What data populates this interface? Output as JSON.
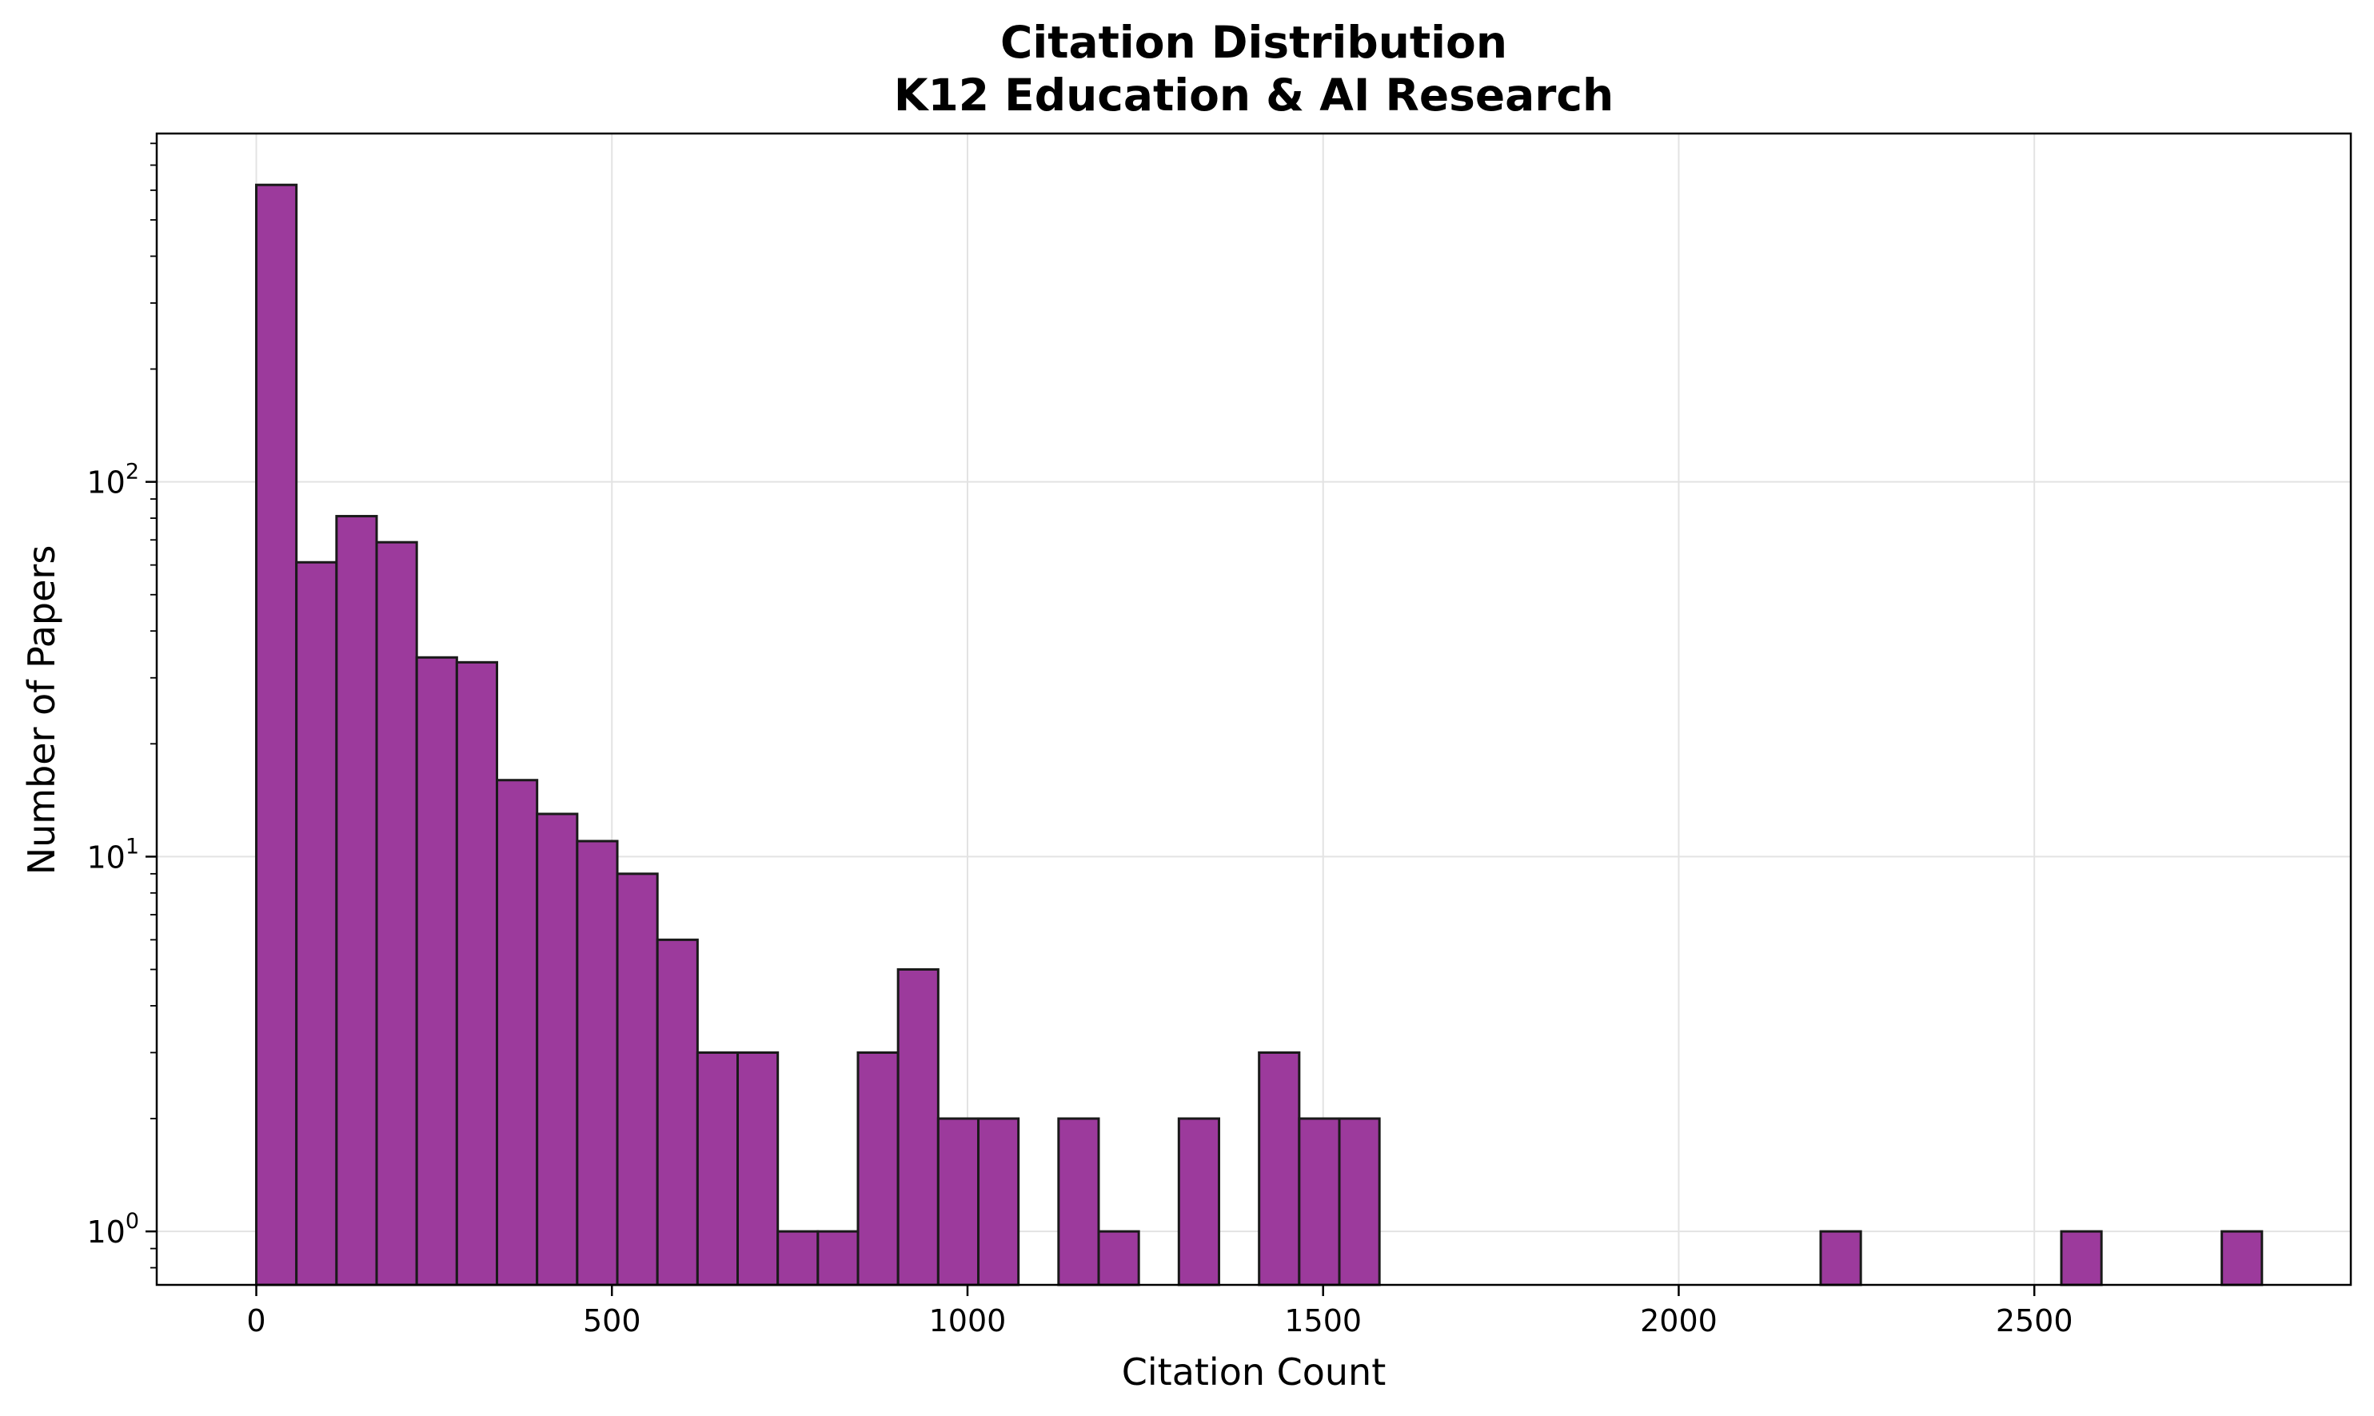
{
  "chart_data": {
    "type": "bar",
    "title": "Citation Distribution",
    "subtitle": "K12 Education & AI Research",
    "xlabel": "Citation Count",
    "ylabel": "Number of Papers",
    "y_scale": "log",
    "xlim": [
      -140,
      2945
    ],
    "ylim": [
      0.72,
      850
    ],
    "x_ticks": [
      0,
      500,
      1000,
      1500,
      2000,
      2500
    ],
    "x_tick_labels": [
      "0",
      "500",
      "1000",
      "1500",
      "2000",
      "2500"
    ],
    "y_ticks": [
      1,
      10,
      100
    ],
    "y_tick_labels": [
      {
        "base": "10",
        "exp": "0"
      },
      {
        "base": "10",
        "exp": "1"
      },
      {
        "base": "10",
        "exp": "2"
      }
    ],
    "grid": true,
    "bin_width": 56.4,
    "bins": [
      {
        "start": 0,
        "count": 620
      },
      {
        "start": 56.4,
        "count": 61
      },
      {
        "start": 112.8,
        "count": 81
      },
      {
        "start": 169.2,
        "count": 69
      },
      {
        "start": 225.6,
        "count": 34
      },
      {
        "start": 282.0,
        "count": 33
      },
      {
        "start": 338.4,
        "count": 16
      },
      {
        "start": 394.8,
        "count": 13
      },
      {
        "start": 451.2,
        "count": 11
      },
      {
        "start": 507.6,
        "count": 9
      },
      {
        "start": 564.0,
        "count": 6
      },
      {
        "start": 620.4,
        "count": 3
      },
      {
        "start": 676.8,
        "count": 3
      },
      {
        "start": 733.2,
        "count": 1
      },
      {
        "start": 789.6,
        "count": 1
      },
      {
        "start": 846.0,
        "count": 3
      },
      {
        "start": 902.4,
        "count": 5
      },
      {
        "start": 958.8,
        "count": 2
      },
      {
        "start": 1015.2,
        "count": 2
      },
      {
        "start": 1128.0,
        "count": 2
      },
      {
        "start": 1184.4,
        "count": 1
      },
      {
        "start": 1297.2,
        "count": 2
      },
      {
        "start": 1410.0,
        "count": 3
      },
      {
        "start": 1466.4,
        "count": 2
      },
      {
        "start": 1522.8,
        "count": 2
      },
      {
        "start": 2199.6,
        "count": 1
      },
      {
        "start": 2538.0,
        "count": 1
      },
      {
        "start": 2763.6,
        "count": 1
      }
    ],
    "colors": {
      "bar_fill": "#9c3a9c",
      "bar_edge": "#1a1a1a",
      "grid": "#e3e3e3",
      "axis": "#000000"
    }
  }
}
